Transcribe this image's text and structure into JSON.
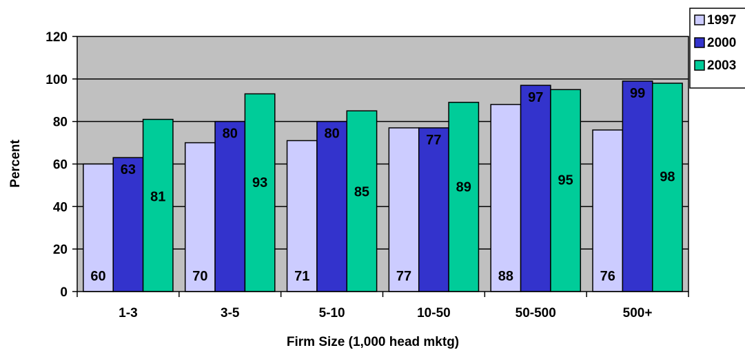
{
  "chart_data": {
    "type": "bar",
    "title": "",
    "xlabel": "Firm Size (1,000 head mktg)",
    "ylabel": "Percent",
    "ylim": [
      0,
      120
    ],
    "yticks": [
      0,
      20,
      40,
      60,
      80,
      100,
      120
    ],
    "grid": true,
    "legend_position": "top-right",
    "categories": [
      "1-3",
      "3-5",
      "5-10",
      "10-50",
      "50-500",
      "500+"
    ],
    "series": [
      {
        "name": "1997",
        "color": "#ccccff",
        "values": [
          60,
          70,
          71,
          77,
          88,
          76
        ]
      },
      {
        "name": "2000",
        "color": "#3333cc",
        "values": [
          63,
          80,
          80,
          77,
          97,
          99
        ]
      },
      {
        "name": "2003",
        "color": "#00cc99",
        "values": [
          81,
          93,
          85,
          89,
          95,
          98
        ]
      }
    ],
    "plot_background": "#c0c0c0"
  }
}
